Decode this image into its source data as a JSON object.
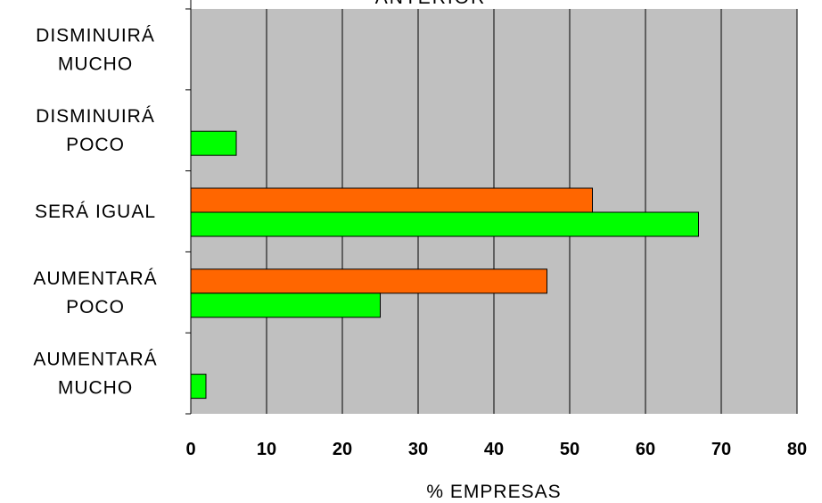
{
  "chart_data": {
    "type": "bar",
    "orientation": "horizontal",
    "title": "ANTERIOR",
    "xlabel": "% EMPRESAS",
    "ylabel": "",
    "xlim": [
      0,
      80
    ],
    "x_ticks": [
      "0",
      "10",
      "20",
      "30",
      "40",
      "50",
      "60",
      "70",
      "80"
    ],
    "categories": [
      [
        "DISMINUIRÁ",
        "MUCHO"
      ],
      [
        "DISMINUIRÁ",
        "POCO"
      ],
      [
        "SERÁ IGUAL"
      ],
      [
        "AUMENTARÁ",
        "POCO"
      ],
      [
        "AUMENTARÁ",
        "MUCHO"
      ]
    ],
    "series": [
      {
        "color": "#FF6600",
        "values": [
          0,
          0,
          53,
          47,
          0
        ]
      },
      {
        "color": "#00FF00",
        "values": [
          0,
          6,
          67,
          25,
          2
        ]
      }
    ],
    "plot_background": "#C0C0C0",
    "grid": true
  }
}
